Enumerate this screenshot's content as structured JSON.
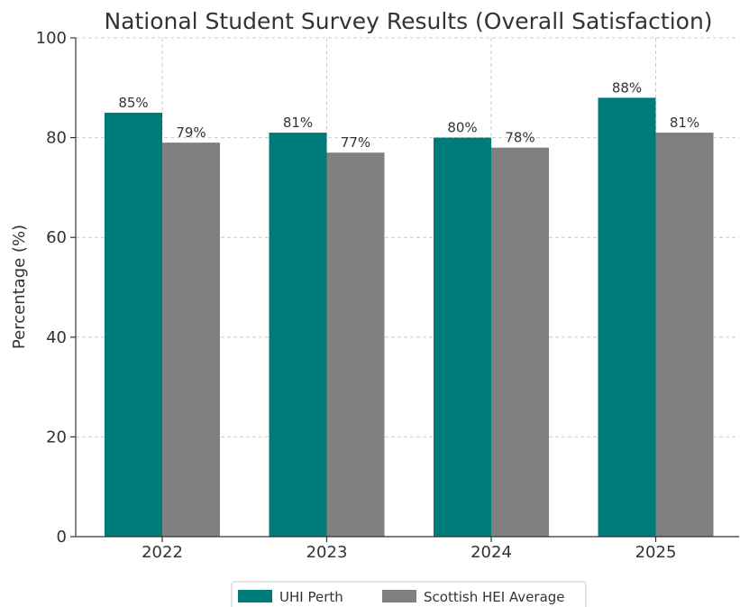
{
  "chart_data": {
    "type": "bar",
    "title": "National Student Survey Results (Overall Satisfaction)",
    "xlabel": "",
    "ylabel": "Percentage (%)",
    "categories": [
      "2022",
      "2023",
      "2024",
      "2025"
    ],
    "series": [
      {
        "name": "UHI Perth",
        "values": [
          85,
          81,
          80,
          88
        ],
        "labels": [
          "85%",
          "81%",
          "80%",
          "88%"
        ],
        "color": "#007b7b"
      },
      {
        "name": "Scottish HEI Average",
        "values": [
          79,
          77,
          78,
          81
        ],
        "labels": [
          "79%",
          "77%",
          "78%",
          "81%"
        ],
        "color": "#808080"
      }
    ],
    "ylim": [
      0,
      100
    ],
    "yticks": [
      0,
      20,
      40,
      60,
      80,
      100
    ],
    "ytick_labels": [
      "0",
      "20",
      "40",
      "60",
      "80",
      "100"
    ],
    "grid": true,
    "legend_position": "bottom-center"
  }
}
